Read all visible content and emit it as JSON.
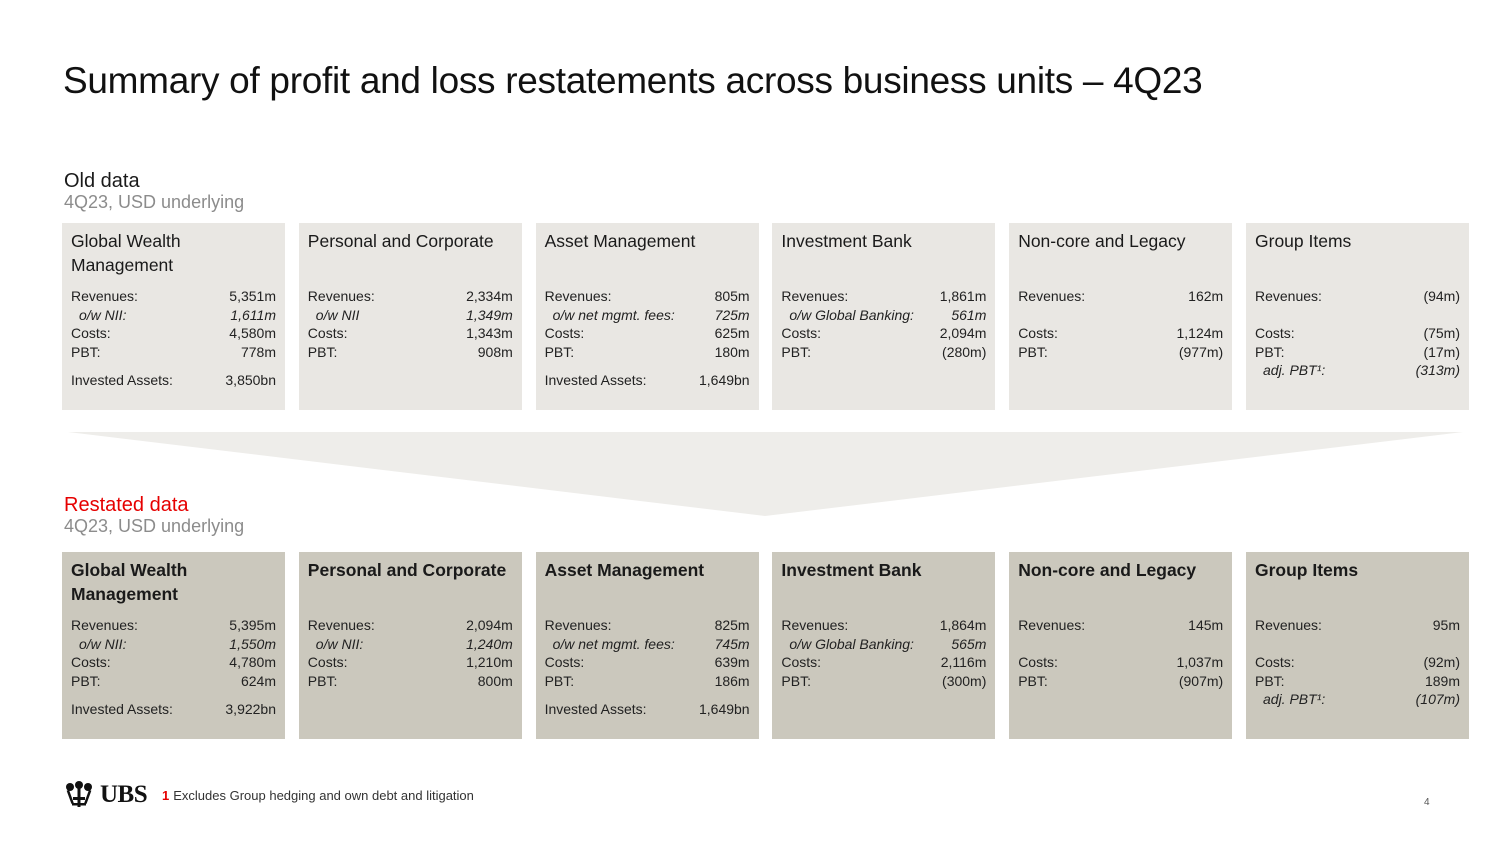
{
  "title": "Summary of profit and loss restatements across business units – 4Q23",
  "old": {
    "heading": "Old data",
    "subheading": "4Q23, USD underlying",
    "cards": [
      {
        "title": "Global Wealth Management",
        "rows": [
          {
            "label": "Revenues:",
            "value": "5,351m"
          },
          {
            "label": "o/w NII:",
            "value": "1,611m",
            "italic": true
          },
          {
            "label": "Costs:",
            "value": "4,580m"
          },
          {
            "label": "PBT:",
            "value": "778m"
          },
          {
            "label": "Invested Assets:",
            "value": "3,850bn",
            "gap": true
          }
        ]
      },
      {
        "title": "Personal and Corporate",
        "rows": [
          {
            "label": "Revenues:",
            "value": "2,334m"
          },
          {
            "label": "o/w NII",
            "value": "1,349m",
            "italic": true
          },
          {
            "label": "Costs:",
            "value": "1,343m"
          },
          {
            "label": "PBT:",
            "value": "908m"
          }
        ]
      },
      {
        "title": "Asset Management",
        "rows": [
          {
            "label": "Revenues:",
            "value": "805m"
          },
          {
            "label": "o/w net mgmt. fees:",
            "value": "725m",
            "italic": true
          },
          {
            "label": "Costs:",
            "value": "625m"
          },
          {
            "label": "PBT:",
            "value": "180m"
          },
          {
            "label": "Invested Assets:",
            "value": "1,649bn",
            "gap": true
          }
        ]
      },
      {
        "title": "Investment Bank",
        "rows": [
          {
            "label": "Revenues:",
            "value": "1,861m"
          },
          {
            "label": "o/w Global Banking:",
            "value": "561m",
            "italic": true
          },
          {
            "label": "Costs:",
            "value": "2,094m"
          },
          {
            "label": "PBT:",
            "value": "(280m)"
          }
        ]
      },
      {
        "title": "Non-core and Legacy",
        "rows": [
          {
            "label": "Revenues:",
            "value": "162m"
          },
          {
            "label": "",
            "value": "",
            "blank": true
          },
          {
            "label": "Costs:",
            "value": "1,124m"
          },
          {
            "label": "PBT:",
            "value": "(977m)"
          }
        ]
      },
      {
        "title": "Group Items",
        "rows": [
          {
            "label": "Revenues:",
            "value": "(94m)"
          },
          {
            "label": "",
            "value": "",
            "blank": true
          },
          {
            "label": "Costs:",
            "value": "(75m)"
          },
          {
            "label": "PBT:",
            "value": "(17m)"
          },
          {
            "label": "adj. PBT¹:",
            "value": "(313m)",
            "italic": true
          }
        ]
      }
    ]
  },
  "restated": {
    "heading": "Restated data",
    "subheading": "4Q23, USD underlying",
    "cards": [
      {
        "title": "Global Wealth Management",
        "rows": [
          {
            "label": "Revenues:",
            "value": "5,395m"
          },
          {
            "label": "o/w NII:",
            "value": "1,550m",
            "italic": true
          },
          {
            "label": "Costs:",
            "value": "4,780m"
          },
          {
            "label": "PBT:",
            "value": "624m"
          },
          {
            "label": "Invested Assets:",
            "value": "3,922bn",
            "gap": true
          }
        ]
      },
      {
        "title": "Personal and Corporate",
        "rows": [
          {
            "label": "Revenues:",
            "value": "2,094m"
          },
          {
            "label": "o/w NII:",
            "value": "1,240m",
            "italic": true
          },
          {
            "label": "Costs:",
            "value": "1,210m"
          },
          {
            "label": "PBT:",
            "value": "800m"
          }
        ]
      },
      {
        "title": "Asset Management",
        "rows": [
          {
            "label": "Revenues:",
            "value": "825m"
          },
          {
            "label": "o/w net mgmt. fees:",
            "value": "745m",
            "italic": true
          },
          {
            "label": "Costs:",
            "value": "639m"
          },
          {
            "label": "PBT:",
            "value": "186m"
          },
          {
            "label": "Invested Assets:",
            "value": "1,649bn",
            "gap": true
          }
        ]
      },
      {
        "title": "Investment Bank",
        "rows": [
          {
            "label": "Revenues:",
            "value": "1,864m"
          },
          {
            "label": "o/w Global Banking:",
            "value": "565m",
            "italic": true
          },
          {
            "label": "Costs:",
            "value": "2,116m"
          },
          {
            "label": "PBT:",
            "value": "(300m)"
          }
        ]
      },
      {
        "title": "Non-core and Legacy",
        "rows": [
          {
            "label": "Revenues:",
            "value": "145m"
          },
          {
            "label": "",
            "value": "",
            "blank": true
          },
          {
            "label": "Costs:",
            "value": "1,037m"
          },
          {
            "label": "PBT:",
            "value": "(907m)"
          }
        ]
      },
      {
        "title": "Group Items",
        "rows": [
          {
            "label": "Revenues:",
            "value": "95m"
          },
          {
            "label": "",
            "value": "",
            "blank": true
          },
          {
            "label": "Costs:",
            "value": "(92m)"
          },
          {
            "label": "PBT:",
            "value": "189m"
          },
          {
            "label": "adj. PBT¹:",
            "value": "(107m)",
            "italic": true
          }
        ]
      }
    ]
  },
  "footer": {
    "logo_text": "UBS",
    "footnote_number": "1",
    "footnote_text": "Excludes Group hedging and own debt and litigation",
    "page_number": "4"
  },
  "colors": {
    "accent_red": "#e60000",
    "old_card_bg": "#e9e7e3",
    "restated_card_bg": "#cbc8bd",
    "arrow_fill": "#eeedea"
  }
}
